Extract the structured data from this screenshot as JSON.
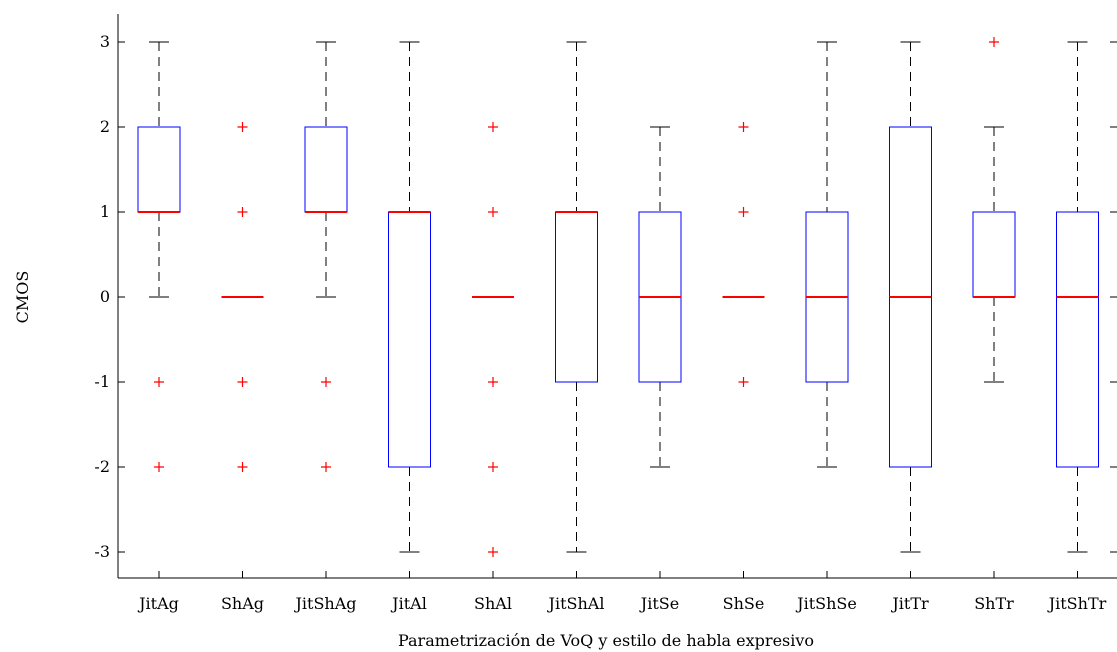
{
  "chart_data": {
    "type": "box",
    "xlabel": "Parametrización de VoQ y estilo de habla expresivo",
    "ylabel": "CMOS",
    "ylim": [
      -3.3,
      3.3
    ],
    "yticks": [
      -3,
      -2,
      -1,
      0,
      1,
      2,
      3
    ],
    "categories": [
      "JitAg",
      "ShAg",
      "JitShAg",
      "JitAl",
      "ShAl",
      "JitShAl",
      "JitSe",
      "ShSe",
      "JitShSe",
      "JitTr",
      "ShTr",
      "JitShTr"
    ],
    "boxes": [
      {
        "label": "JitAg",
        "whisker_low": 0,
        "q1": 1,
        "median": 1,
        "q3": 2,
        "whisker_high": 3,
        "outliers": [
          -1,
          -2
        ]
      },
      {
        "label": "ShAg",
        "whisker_low": 0,
        "q1": 0,
        "median": 0,
        "q3": 0,
        "whisker_high": 0,
        "outliers": [
          2,
          1,
          -1,
          -2
        ]
      },
      {
        "label": "JitShAg",
        "whisker_low": 0,
        "q1": 1,
        "median": 1,
        "q3": 2,
        "whisker_high": 3,
        "outliers": [
          -1,
          -2
        ]
      },
      {
        "label": "JitAl",
        "whisker_low": -3,
        "q1": -2,
        "median": 1,
        "q3": 1,
        "whisker_high": 3,
        "outliers": []
      },
      {
        "label": "ShAl",
        "whisker_low": 0,
        "q1": 0,
        "median": 0,
        "q3": 0,
        "whisker_high": 0,
        "outliers": [
          2,
          1,
          -1,
          -2,
          -3
        ]
      },
      {
        "label": "JitShAl",
        "whisker_low": -3,
        "q1": -1,
        "median": 1,
        "q3": 1,
        "whisker_high": 3,
        "outliers": []
      },
      {
        "label": "JitSe",
        "whisker_low": -2,
        "q1": -1,
        "median": 0,
        "q3": 1,
        "whisker_high": 2,
        "outliers": []
      },
      {
        "label": "ShSe",
        "whisker_low": 0,
        "q1": 0,
        "median": 0,
        "q3": 0,
        "whisker_high": 0,
        "outliers": [
          2,
          1,
          -1
        ]
      },
      {
        "label": "JitShSe",
        "whisker_low": -2,
        "q1": -1,
        "median": 0,
        "q3": 1,
        "whisker_high": 3,
        "outliers": []
      },
      {
        "label": "JitTr",
        "whisker_low": -3,
        "q1": -2,
        "median": 0,
        "q3": 2,
        "whisker_high": 3,
        "outliers": []
      },
      {
        "label": "ShTr",
        "whisker_low": -1,
        "q1": 0,
        "median": 0,
        "q3": 1,
        "whisker_high": 2,
        "outliers": [
          3
        ]
      },
      {
        "label": "JitShTr",
        "whisker_low": -3,
        "q1": -2,
        "median": 0,
        "q3": 1,
        "whisker_high": 3,
        "outliers": []
      }
    ],
    "colors": {
      "box": "#0000ff",
      "median": "#ff0000",
      "outlier": "#ff0000",
      "whisker": "#000000",
      "axis": "#000000"
    },
    "grid": false
  }
}
